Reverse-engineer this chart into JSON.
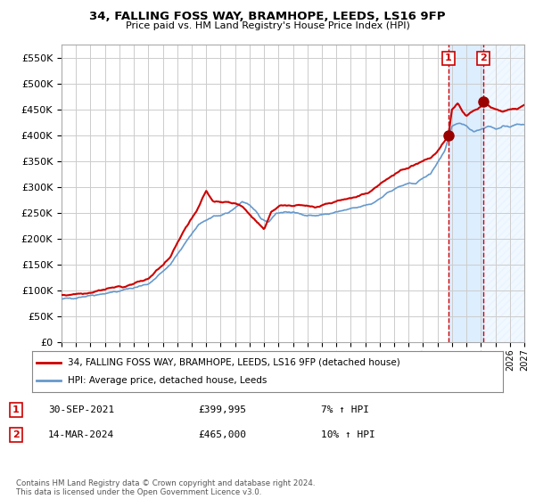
{
  "title": "34, FALLING FOSS WAY, BRAMHOPE, LEEDS, LS16 9FP",
  "subtitle": "Price paid vs. HM Land Registry's House Price Index (HPI)",
  "legend_line1": "34, FALLING FOSS WAY, BRAMHOPE, LEEDS, LS16 9FP (detached house)",
  "legend_line2": "HPI: Average price, detached house, Leeds",
  "transaction1_date": "30-SEP-2021",
  "transaction1_price": 399995,
  "transaction1_label": "7% ↑ HPI",
  "transaction2_date": "14-MAR-2024",
  "transaction2_price": 465000,
  "transaction2_label": "10% ↑ HPI",
  "footer": "Contains HM Land Registry data © Crown copyright and database right 2024.\nThis data is licensed under the Open Government Licence v3.0.",
  "ylim": [
    0,
    575000
  ],
  "ytick_step": 50000,
  "hpi_color": "#6699cc",
  "price_color": "#cc0000",
  "dot_color": "#990000",
  "vline_color": "#cc0000",
  "shade_color": "#ddeeff",
  "hatch_color": "#aabbcc",
  "grid_color": "#cccccc",
  "bg_color": "#ffffff",
  "box_color": "#cc0000",
  "t1_year": 2021.75,
  "t2_year": 2024.17,
  "xlim_start": 1995,
  "xlim_end": 2027
}
